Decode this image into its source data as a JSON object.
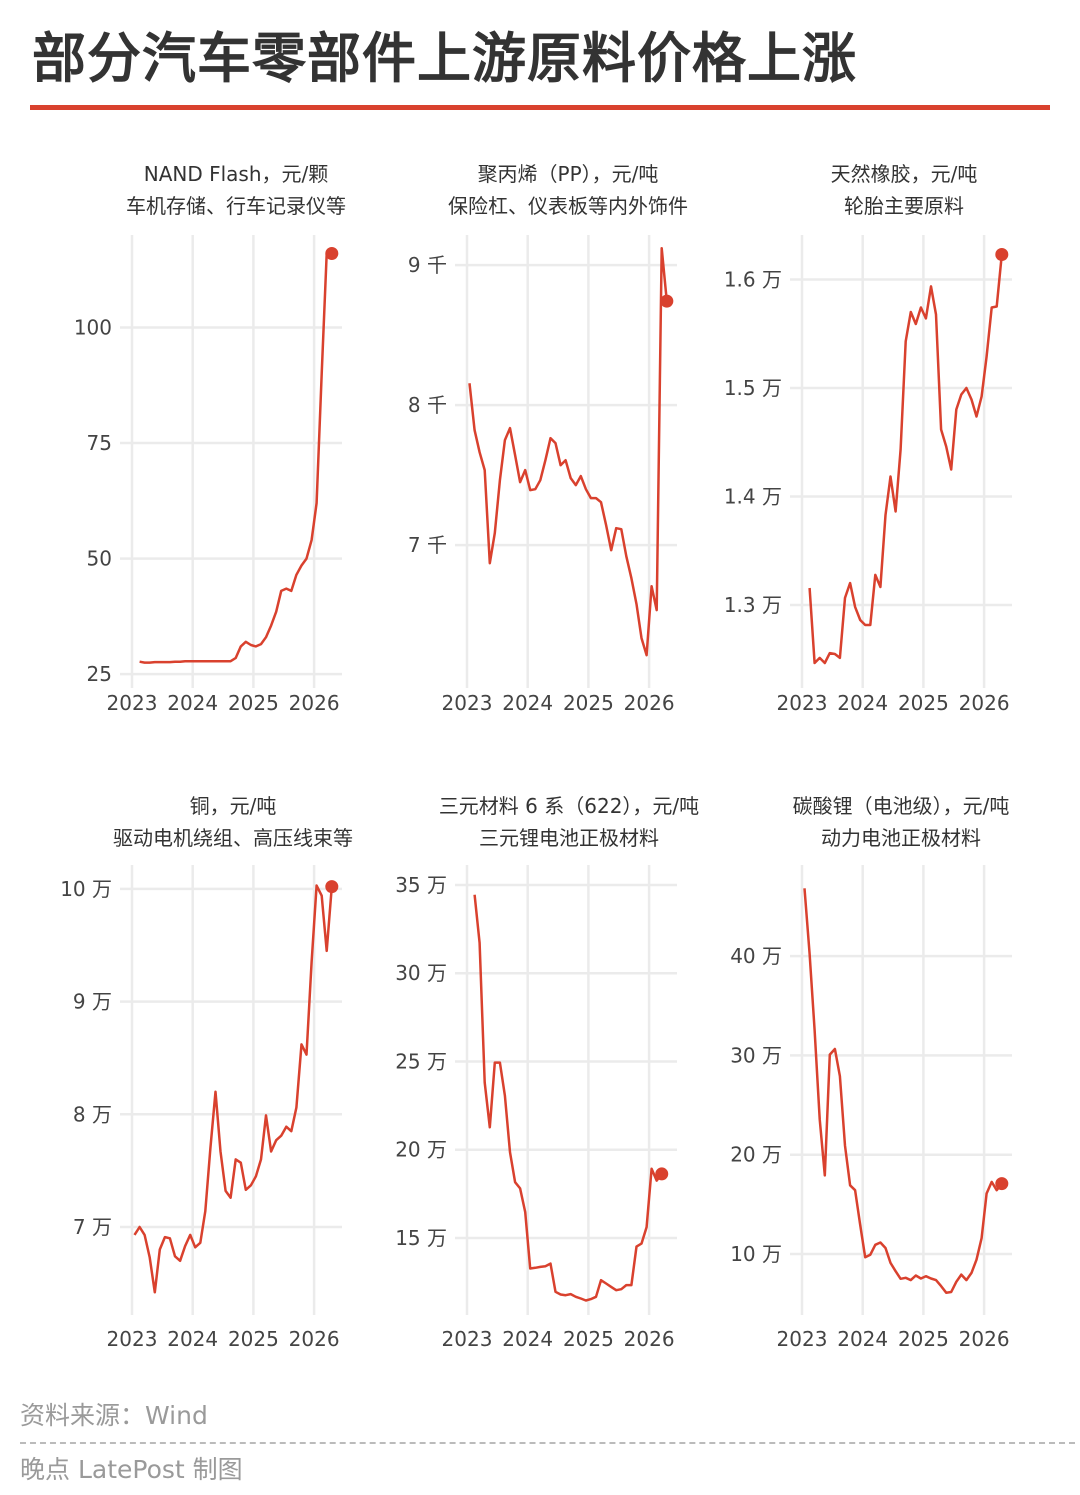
{
  "header": {
    "title": "部分汽车零部件上游原料价格上涨"
  },
  "footer": {
    "source": "资料来源：Wind",
    "credit": "晚点 LatePost 制图"
  },
  "colors": {
    "accent": "#d9412e",
    "grid": "#ebebeb",
    "text": "#333333"
  },
  "watermark": "晚点 LatePost",
  "chart_data": [
    {
      "type": "line",
      "title": "NAND Flash，元/颗",
      "subtitle": "车机存储、行车记录仪等",
      "xticks": [
        "2023",
        "2024",
        "2025",
        "2026"
      ],
      "yticks": [
        {
          "value": 25,
          "label": "25"
        },
        {
          "value": 50,
          "label": "50"
        },
        {
          "value": 75,
          "label": "75"
        },
        {
          "value": 100,
          "label": "100"
        }
      ],
      "ylim": [
        22,
        120
      ],
      "grid": true,
      "x": [
        "2023-02",
        "2023-03",
        "2023-04",
        "2023-05",
        "2023-06",
        "2023-07",
        "2023-08",
        "2023-09",
        "2023-10",
        "2023-11",
        "2023-12",
        "2024-01",
        "2024-02",
        "2024-03",
        "2024-04",
        "2024-05",
        "2024-06",
        "2024-07",
        "2024-08",
        "2024-09",
        "2024-10",
        "2024-11",
        "2024-12",
        "2025-01",
        "2025-02",
        "2025-03",
        "2025-04",
        "2025-05",
        "2025-06",
        "2025-07",
        "2025-08",
        "2025-09",
        "2025-10",
        "2025-11",
        "2025-12",
        "2026-01",
        "2026-02",
        "2026-03",
        "2026-04"
      ],
      "values": [
        27.7,
        27.5,
        27.5,
        27.6,
        27.6,
        27.6,
        27.6,
        27.7,
        27.7,
        27.8,
        27.8,
        27.8,
        27.8,
        27.8,
        27.8,
        27.8,
        27.8,
        27.8,
        27.8,
        28.5,
        31,
        32,
        31.3,
        31,
        31.5,
        33,
        35.5,
        38.5,
        43,
        43.5,
        43,
        46.5,
        48.5,
        50,
        54,
        62,
        90,
        116,
        116
      ]
    },
    {
      "type": "line",
      "title": "聚丙烯（PP），元/吨",
      "subtitle": "保险杠、仪表板等内外饰件",
      "xticks": [
        "2023",
        "2024",
        "2025",
        "2026"
      ],
      "yticks": [
        {
          "value": 7000,
          "label": "7 千"
        },
        {
          "value": 8000,
          "label": "8 千"
        },
        {
          "value": 9000,
          "label": "9 千"
        }
      ],
      "ylim": [
        5980,
        9215
      ],
      "grid": true,
      "x": [
        "2023-01",
        "2023-02",
        "2023-03",
        "2023-04",
        "2023-05",
        "2023-06",
        "2023-07",
        "2023-08",
        "2023-09",
        "2023-10",
        "2023-11",
        "2023-12",
        "2024-01",
        "2024-02",
        "2024-03",
        "2024-04",
        "2024-05",
        "2024-06",
        "2024-07",
        "2024-08",
        "2024-09",
        "2024-10",
        "2024-11",
        "2024-12",
        "2025-01",
        "2025-02",
        "2025-03",
        "2025-04",
        "2025-05",
        "2025-06",
        "2025-07",
        "2025-08",
        "2025-09",
        "2025-10",
        "2025-11",
        "2025-12",
        "2026-01",
        "2026-02",
        "2026-03",
        "2026-04"
      ],
      "values": [
        8157,
        7821,
        7664,
        7536,
        6871,
        7086,
        7464,
        7750,
        7836,
        7643,
        7450,
        7536,
        7393,
        7400,
        7464,
        7607,
        7764,
        7729,
        7571,
        7607,
        7479,
        7429,
        7493,
        7400,
        7336,
        7336,
        7307,
        7143,
        6964,
        7121,
        7114,
        6921,
        6764,
        6579,
        6336,
        6214,
        6707,
        6536,
        9121,
        8743
      ]
    },
    {
      "type": "line",
      "title": "天然橡胶，元/吨",
      "subtitle": "轮胎主要原料",
      "xticks": [
        "2023",
        "2024",
        "2025",
        "2026"
      ],
      "yticks": [
        {
          "value": 13000,
          "label": "1.3 万"
        },
        {
          "value": 14000,
          "label": "1.4 万"
        },
        {
          "value": 15000,
          "label": "1.5 万"
        },
        {
          "value": 16000,
          "label": "1.6 万"
        }
      ],
      "ylim": [
        12235,
        16410
      ],
      "grid": true,
      "x": [
        "2023-02",
        "2023-03",
        "2023-04",
        "2023-05",
        "2023-06",
        "2023-07",
        "2023-08",
        "2023-09",
        "2023-10",
        "2023-11",
        "2023-12",
        "2024-01",
        "2024-02",
        "2024-03",
        "2024-04",
        "2024-05",
        "2024-06",
        "2024-07",
        "2024-08",
        "2024-09",
        "2024-10",
        "2024-11",
        "2024-12",
        "2025-01",
        "2025-02",
        "2025-03",
        "2025-04",
        "2025-05",
        "2025-06",
        "2025-07",
        "2025-08",
        "2025-09",
        "2025-10",
        "2025-11",
        "2025-12",
        "2026-01",
        "2026-02",
        "2026-03",
        "2026-04"
      ],
      "values": [
        13157,
        12465,
        12512,
        12465,
        12557,
        12548,
        12512,
        13065,
        13203,
        12982,
        12862,
        12816,
        12816,
        13277,
        13166,
        13829,
        14184,
        13862,
        14433,
        15430,
        15700,
        15590,
        15742,
        15641,
        15936,
        15677,
        14617,
        14461,
        14249,
        14802,
        14940,
        15000,
        14894,
        14737,
        14922,
        15290,
        15742,
        15751,
        16230
      ]
    },
    {
      "type": "line",
      "title": "铜，元/吨",
      "subtitle": "驱动电机绕组、高压线束等",
      "xticks": [
        "2023",
        "2024",
        "2025",
        "2026"
      ],
      "yticks": [
        {
          "value": 70000,
          "label": "7 万"
        },
        {
          "value": 80000,
          "label": "8 万"
        },
        {
          "value": 90000,
          "label": "9 万"
        },
        {
          "value": 100000,
          "label": "10 万"
        }
      ],
      "ylim": [
        62190,
        102120
      ],
      "grid": true,
      "x": [
        "2023-01",
        "2023-02",
        "2023-03",
        "2023-04",
        "2023-05",
        "2023-06",
        "2023-07",
        "2023-08",
        "2023-09",
        "2023-10",
        "2023-11",
        "2023-12",
        "2024-01",
        "2024-02",
        "2024-03",
        "2024-04",
        "2024-05",
        "2024-06",
        "2024-07",
        "2024-08",
        "2024-09",
        "2024-10",
        "2024-11",
        "2024-12",
        "2025-01",
        "2025-02",
        "2025-03",
        "2025-04",
        "2025-05",
        "2025-06",
        "2025-07",
        "2025-08",
        "2025-09",
        "2025-10",
        "2025-11",
        "2025-12",
        "2026-01",
        "2026-02",
        "2026-03",
        "2026-04"
      ],
      "values": [
        69300,
        70000,
        69300,
        67300,
        64200,
        68000,
        69100,
        69000,
        67400,
        67000,
        68300,
        69300,
        68200,
        68600,
        71400,
        77000,
        82000,
        76700,
        73200,
        72600,
        76000,
        75700,
        73300,
        73700,
        74500,
        76000,
        79900,
        76700,
        77700,
        78100,
        78900,
        78500,
        80600,
        86200,
        85300,
        93500,
        100300,
        99400,
        94500,
        100200
      ]
    },
    {
      "type": "line",
      "title": "三元材料 6 系（622），元/吨",
      "subtitle": "三元锂电池正极材料",
      "xticks": [
        "2023",
        "2024",
        "2025",
        "2026"
      ],
      "yticks": [
        {
          "value": 150000,
          "label": "15 万"
        },
        {
          "value": 200000,
          "label": "20 万"
        },
        {
          "value": 250000,
          "label": "25 万"
        },
        {
          "value": 300000,
          "label": "30 万"
        },
        {
          "value": 350000,
          "label": "35 万"
        }
      ],
      "ylim": [
        106370,
        361330
      ],
      "grid": true,
      "x": [
        "2023-02",
        "2023-03",
        "2023-04",
        "2023-05",
        "2023-06",
        "2023-07",
        "2023-08",
        "2023-09",
        "2023-10",
        "2023-11",
        "2023-12",
        "2024-01",
        "2024-02",
        "2024-03",
        "2024-04",
        "2024-05",
        "2024-06",
        "2024-07",
        "2024-08",
        "2024-09",
        "2024-10",
        "2024-11",
        "2024-12",
        "2025-01",
        "2025-02",
        "2025-03",
        "2025-04",
        "2025-05",
        "2025-06",
        "2025-07",
        "2025-08",
        "2025-09",
        "2025-10",
        "2025-11",
        "2025-12",
        "2026-01",
        "2026-02",
        "2026-03"
      ],
      "values": [
        344500,
        317200,
        238100,
        212700,
        249400,
        249400,
        230600,
        198600,
        181600,
        178100,
        164700,
        132700,
        133100,
        133600,
        134000,
        135500,
        119500,
        118000,
        117600,
        118200,
        116700,
        115700,
        114600,
        115400,
        116700,
        126100,
        124200,
        122300,
        120400,
        121000,
        123300,
        123300,
        145100,
        146800,
        156200,
        189200,
        182500,
        186300
      ]
    },
    {
      "type": "line",
      "title": "碳酸锂（电池级），元/吨",
      "subtitle": "动力电池正极材料",
      "xticks": [
        "2023",
        "2024",
        "2025",
        "2026"
      ],
      "yticks": [
        {
          "value": 100000,
          "label": "10 万"
        },
        {
          "value": 200000,
          "label": "20 万"
        },
        {
          "value": 300000,
          "label": "30 万"
        },
        {
          "value": 400000,
          "label": "40 万"
        }
      ],
      "ylim": [
        38570,
        491740
      ],
      "grid": true,
      "x": [
        "2023-01",
        "2023-02",
        "2023-03",
        "2023-04",
        "2023-05",
        "2023-06",
        "2023-07",
        "2023-08",
        "2023-09",
        "2023-10",
        "2023-11",
        "2023-12",
        "2024-01",
        "2024-02",
        "2024-03",
        "2024-04",
        "2024-05",
        "2024-06",
        "2024-07",
        "2024-08",
        "2024-09",
        "2024-10",
        "2024-11",
        "2024-12",
        "2025-01",
        "2025-02",
        "2025-03",
        "2025-04",
        "2025-05",
        "2025-06",
        "2025-07",
        "2025-08",
        "2025-09",
        "2025-10",
        "2025-11",
        "2025-12",
        "2026-01",
        "2026-02",
        "2026-03",
        "2026-04"
      ],
      "values": [
        468300,
        402300,
        325700,
        235800,
        179200,
        300800,
        306400,
        279100,
        209200,
        169200,
        164200,
        129300,
        96700,
        99300,
        109300,
        111600,
        106000,
        91000,
        82700,
        75000,
        76000,
        73700,
        78300,
        75300,
        77600,
        75300,
        73700,
        67700,
        61000,
        61700,
        72000,
        79300,
        73700,
        81000,
        94300,
        116000,
        160900,
        172600,
        164200,
        170900
      ]
    }
  ]
}
